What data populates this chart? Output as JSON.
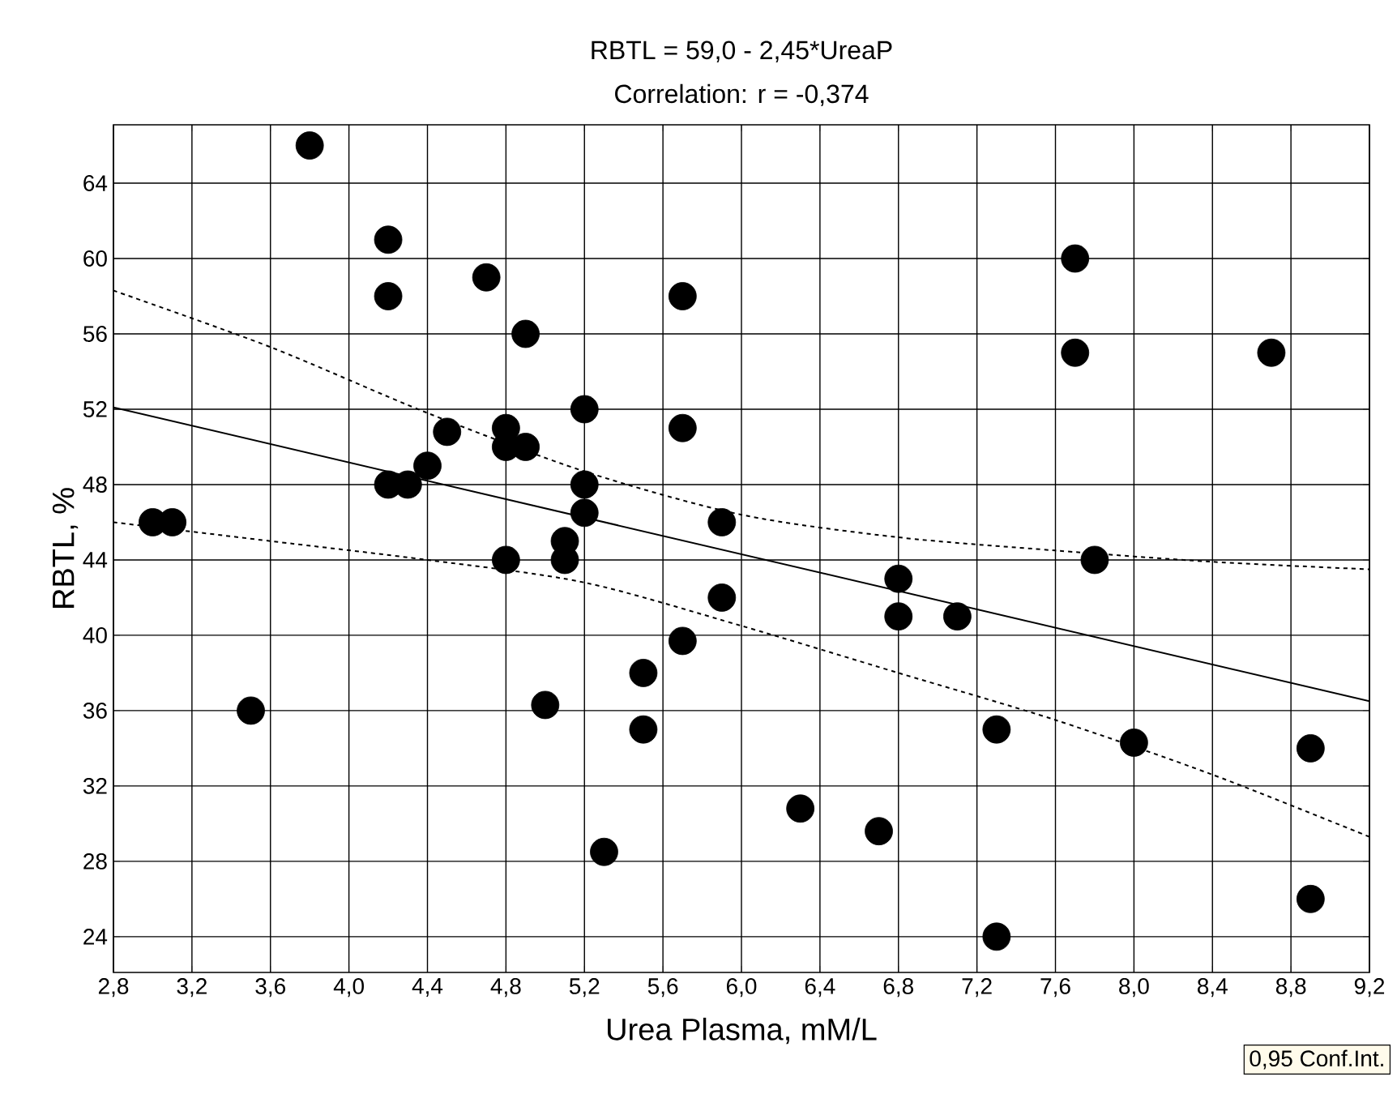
{
  "chart_data": {
    "type": "scatter",
    "title": "RBTL = 59,0 - 2,45*UreaP",
    "subtitle": "Correlation: r = -0,374",
    "xlabel": "Urea Plasma, mM/L",
    "ylabel": "RBTL, %",
    "annotations": [
      "0,95 Conf.Int."
    ],
    "xlim": [
      2.8,
      9.2
    ],
    "ylim": [
      22.1,
      67.1
    ],
    "xticks": [
      {
        "value": 2.8,
        "label": "2,8"
      },
      {
        "value": 3.2,
        "label": "3,2"
      },
      {
        "value": 3.6,
        "label": "3,6"
      },
      {
        "value": 4.0,
        "label": "4,0"
      },
      {
        "value": 4.4,
        "label": "4,4"
      },
      {
        "value": 4.8,
        "label": "4,8"
      },
      {
        "value": 5.2,
        "label": "5,2"
      },
      {
        "value": 5.6,
        "label": "5,6"
      },
      {
        "value": 6.0,
        "label": "6,0"
      },
      {
        "value": 6.4,
        "label": "6,4"
      },
      {
        "value": 6.8,
        "label": "6,8"
      },
      {
        "value": 7.2,
        "label": "7,2"
      },
      {
        "value": 7.6,
        "label": "7,6"
      },
      {
        "value": 8.0,
        "label": "8,0"
      },
      {
        "value": 8.4,
        "label": "8,4"
      },
      {
        "value": 8.8,
        "label": "8,8"
      },
      {
        "value": 9.2,
        "label": "9,2"
      }
    ],
    "yticks": [
      24,
      28,
      32,
      36,
      40,
      44,
      48,
      52,
      56,
      60,
      64
    ],
    "grid": true,
    "series": [
      {
        "color": "#000000",
        "marker": "circle",
        "x": [
          3.0,
          3.1,
          3.5,
          3.8,
          4.2,
          4.2,
          4.2,
          4.3,
          4.4,
          4.5,
          4.7,
          4.8,
          4.8,
          4.9,
          4.8,
          4.9,
          5.0,
          5.1,
          5.1,
          5.2,
          5.2,
          5.2,
          5.3,
          5.5,
          5.5,
          5.7,
          5.7,
          5.7,
          5.9,
          5.9,
          6.3,
          6.7,
          6.8,
          6.8,
          7.1,
          7.3,
          7.3,
          7.7,
          7.7,
          7.8,
          8.0,
          8.7,
          8.9,
          8.9
        ],
        "values": [
          46,
          46,
          36,
          66,
          61,
          58,
          48,
          48,
          49,
          50.8,
          59,
          51,
          50,
          50,
          44,
          56,
          36.3,
          45,
          44,
          52,
          48,
          46.5,
          28.5,
          38,
          35,
          58,
          51,
          39.7,
          46,
          42,
          30.8,
          29.6,
          43,
          41,
          41,
          35,
          24,
          60,
          55,
          44,
          34.3,
          55,
          34,
          26
        ]
      },
      {
        "type": "line",
        "color": "#000000",
        "line_style": "solid",
        "x": [
          2.8,
          9.2
        ],
        "values": [
          52.1,
          36.5
        ]
      },
      {
        "type": "line",
        "color": "#000000",
        "line_style": "dotted",
        "x": [
          2.8,
          3.6,
          4.4,
          5.2,
          6.0,
          6.8,
          7.6,
          8.4,
          9.2
        ],
        "values": [
          58.3,
          55.3,
          51.8,
          48.7,
          46.4,
          45.2,
          44.5,
          43.9,
          43.5
        ]
      },
      {
        "type": "line",
        "color": "#000000",
        "line_style": "dotted",
        "x": [
          2.8,
          3.6,
          4.4,
          5.2,
          6.0,
          6.8,
          7.6,
          8.4,
          9.2
        ],
        "values": [
          46.0,
          45.0,
          44.0,
          42.8,
          40.5,
          38.0,
          35.5,
          32.6,
          29.3
        ]
      }
    ]
  }
}
